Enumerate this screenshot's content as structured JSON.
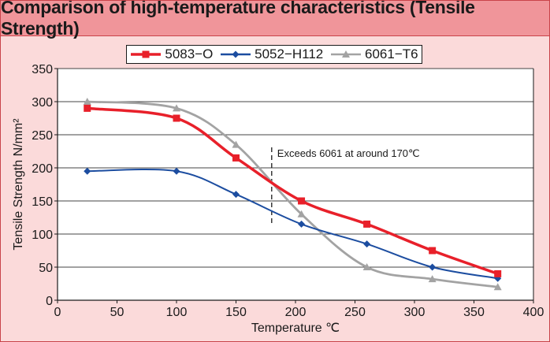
{
  "title": "Comparison of high-temperature characteristics (Tensile Strength)",
  "colors": {
    "frame_bg": "#fbdada",
    "title_bg": "#f0959a",
    "border": "#c9434a"
  },
  "chart_data": {
    "type": "line",
    "xlabel": "Temperature ℃",
    "ylabel": "Tensile Strength N/mm²",
    "xlim": [
      0,
      400
    ],
    "ylim": [
      0,
      350
    ],
    "xticks": [
      0,
      50,
      100,
      150,
      200,
      250,
      300,
      350,
      400
    ],
    "yticks": [
      0,
      50,
      100,
      150,
      200,
      250,
      300,
      350
    ],
    "grid": "horizontal",
    "legend_position": "top-center",
    "series": [
      {
        "name": "5083−O",
        "color": "#e8202a",
        "marker": "square",
        "x": [
          25,
          100,
          150,
          205,
          260,
          315,
          370
        ],
        "y": [
          290,
          275,
          215,
          150,
          115,
          75,
          40
        ]
      },
      {
        "name": "5052−H112",
        "color": "#1c4da0",
        "marker": "diamond",
        "x": [
          25,
          100,
          150,
          205,
          260,
          315,
          370
        ],
        "y": [
          195,
          195,
          160,
          115,
          85,
          50,
          33
        ]
      },
      {
        "name": "6061−T6",
        "color": "#a3a3a3",
        "marker": "triangle",
        "x": [
          25,
          100,
          150,
          205,
          260,
          315,
          370
        ],
        "y": [
          300,
          290,
          235,
          130,
          50,
          32,
          20
        ]
      }
    ],
    "annotations": [
      {
        "text": "Exceeds 6061 at around 170℃",
        "x": 180
      }
    ]
  }
}
